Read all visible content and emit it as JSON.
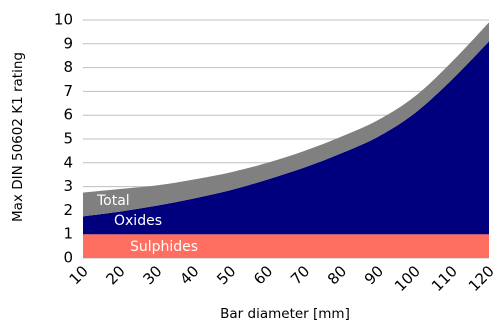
{
  "chart_data": {
    "type": "area",
    "title": "",
    "xlabel": "Bar diameter [mm]",
    "ylabel": "Max DIN 50602 K1 rating",
    "x": [
      10,
      20,
      30,
      40,
      50,
      60,
      70,
      80,
      90,
      100,
      110,
      120
    ],
    "xlim": [
      10,
      120
    ],
    "ylim": [
      0,
      10
    ],
    "yticks": [
      0,
      1,
      2,
      3,
      4,
      5,
      6,
      7,
      8,
      9,
      10
    ],
    "grid": true,
    "stacked": true,
    "series": [
      {
        "name": "Sulphides",
        "values": [
          1.0,
          1.0,
          1.0,
          1.0,
          1.0,
          1.0,
          1.0,
          1.0,
          1.0,
          1.0,
          1.0,
          1.0
        ],
        "color": "#ff6f61"
      },
      {
        "name": "Oxides",
        "values": [
          0.75,
          0.95,
          1.2,
          1.5,
          1.85,
          2.3,
          2.8,
          3.4,
          4.1,
          5.1,
          6.5,
          8.1
        ],
        "color": "#00007f"
      },
      {
        "name": "Total",
        "values": [
          1.0,
          0.95,
          0.85,
          0.8,
          0.75,
          0.7,
          0.7,
          0.7,
          0.7,
          0.7,
          0.75,
          0.8
        ],
        "color": "#808080"
      }
    ]
  }
}
